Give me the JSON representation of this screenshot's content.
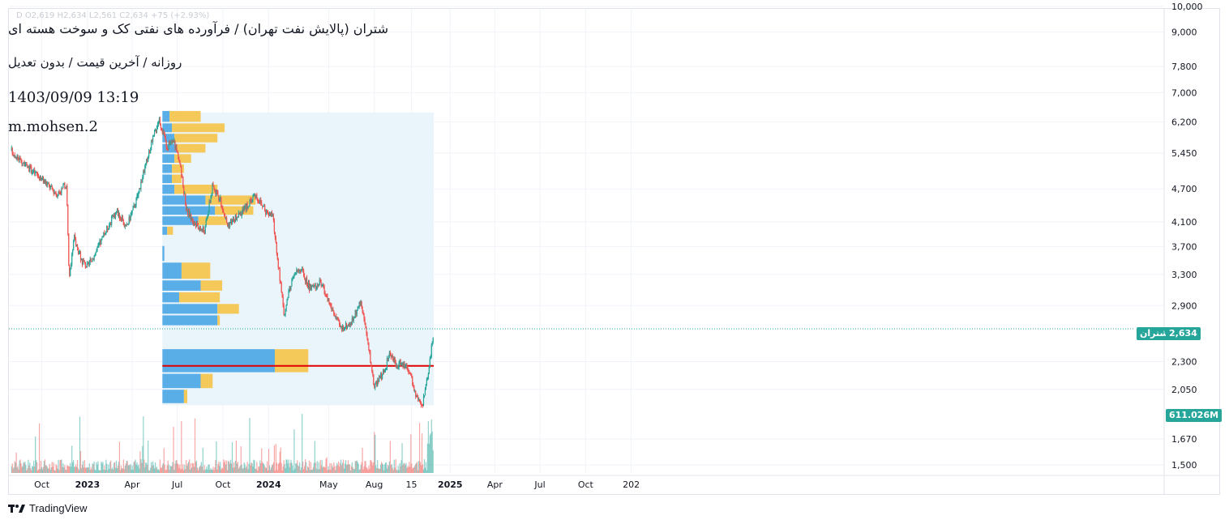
{
  "header": {
    "title": "شتران (پالایش نفت تهران) / فرآورده های نفتی کک و سوخت هسته ای",
    "subtitle": "روزانه / آخرین قیمت / بدون تعدیل",
    "datetime": "1403/09/09 13:19",
    "author": "m.mohsen.2",
    "ohlc_line": "D  O2,619  H2,634  L2,561  C2,634  +75 (+2.93%)"
  },
  "brand": {
    "name": "TradingView",
    "icon": "tradingview-logo-icon"
  },
  "colors": {
    "up": "#26a69a",
    "down": "#ef5350",
    "poc_line": "#e00000",
    "vp_up": "#5aaee8",
    "vp_down": "#f5c85a",
    "vp_zone": "#eaf4fb",
    "last_price": "#26a69a"
  },
  "last_price": {
    "symbol": "شتران",
    "value": "2,634",
    "value_num": 2634
  },
  "volume_tag": {
    "value": "611.026M"
  },
  "chart_data": {
    "type": "candlestick",
    "scale": "log",
    "ylim": [
      1480,
      10100
    ],
    "y_ticks": [
      10000,
      9000,
      7800,
      7000,
      6200,
      5450,
      4700,
      4100,
      3700,
      3300,
      2900,
      2300,
      2050,
      1670,
      1500
    ],
    "y_tick_labels": [
      "10,000",
      "9,000",
      "7,800",
      "7,000",
      "6,200",
      "5,450",
      "4,700",
      "4,100",
      "3,700",
      "3,300",
      "2,900",
      "2,300",
      "2,050",
      "1,670",
      "1,500"
    ],
    "x_labels": [
      "Oct",
      "2023",
      "Apr",
      "Jul",
      "Oct",
      "2024",
      "May",
      "Aug",
      "15",
      "2025",
      "Apr",
      "Jul",
      "Oct",
      "202"
    ],
    "price_path": [
      [
        "2022-08-01",
        5500
      ],
      [
        "2022-09-01",
        5150
      ],
      [
        "2022-10-01",
        4900
      ],
      [
        "2022-11-01",
        4600
      ],
      [
        "2022-11-20",
        4800
      ],
      [
        "2022-11-25",
        3200
      ],
      [
        "2022-12-05",
        3850
      ],
      [
        "2022-12-20",
        3500
      ],
      [
        "2023-01-01",
        3400
      ],
      [
        "2023-01-20",
        3650
      ],
      [
        "2023-02-10",
        4000
      ],
      [
        "2023-03-01",
        4300
      ],
      [
        "2023-03-20",
        4000
      ],
      [
        "2023-04-10",
        4500
      ],
      [
        "2023-05-01",
        5300
      ],
      [
        "2023-05-25",
        6300
      ],
      [
        "2023-06-10",
        5600
      ],
      [
        "2023-06-25",
        5700
      ],
      [
        "2023-07-05",
        5300
      ],
      [
        "2023-07-20",
        4300
      ],
      [
        "2023-08-10",
        4000
      ],
      [
        "2023-08-25",
        3950
      ],
      [
        "2023-09-10",
        4750
      ],
      [
        "2023-09-25",
        4500
      ],
      [
        "2023-10-10",
        4050
      ],
      [
        "2023-11-01",
        4200
      ],
      [
        "2023-11-20",
        4400
      ],
      [
        "2023-12-05",
        4600
      ],
      [
        "2023-12-25",
        4300
      ],
      [
        "2024-01-10",
        4200
      ],
      [
        "2024-01-12",
        4000
      ],
      [
        "2024-02-01",
        2800
      ],
      [
        "2024-02-20",
        3300
      ],
      [
        "2024-03-05",
        3380
      ],
      [
        "2024-03-25",
        3100
      ],
      [
        "2024-04-15",
        3200
      ],
      [
        "2024-05-05",
        2900
      ],
      [
        "2024-05-25",
        2640
      ],
      [
        "2024-06-15",
        2700
      ],
      [
        "2024-07-05",
        2950
      ],
      [
        "2024-07-10",
        2800
      ],
      [
        "2024-07-20",
        2450
      ],
      [
        "2024-08-01",
        2080
      ],
      [
        "2024-08-20",
        2200
      ],
      [
        "2024-09-01",
        2380
      ],
      [
        "2024-09-15",
        2260
      ],
      [
        "2024-09-25",
        2300
      ],
      [
        "2024-10-10",
        2230
      ],
      [
        "2024-10-25",
        1980
      ],
      [
        "2024-11-05",
        1900
      ],
      [
        "2024-11-20",
        2250
      ],
      [
        "2024-11-29",
        2634
      ]
    ],
    "volume_profile": {
      "range": [
        "2023-06-01",
        "2024-11-29"
      ],
      "poc_price": 2260,
      "rows": [
        {
          "price": 6320,
          "up": 0.15,
          "down": 0.65
        },
        {
          "price": 6050,
          "up": 0.2,
          "down": 1.1
        },
        {
          "price": 5800,
          "up": 0.25,
          "down": 0.9
        },
        {
          "price": 5560,
          "up": 0.3,
          "down": 0.6
        },
        {
          "price": 5330,
          "up": 0.25,
          "down": 0.35
        },
        {
          "price": 5110,
          "up": 0.2,
          "down": 0.25
        },
        {
          "price": 4900,
          "up": 0.2,
          "down": 0.2
        },
        {
          "price": 4700,
          "up": 0.25,
          "down": 0.9
        },
        {
          "price": 4480,
          "up": 0.9,
          "down": 1.05
        },
        {
          "price": 4300,
          "up": 1.1,
          "down": 0.8
        },
        {
          "price": 4120,
          "up": 0.75,
          "down": 0.6
        },
        {
          "price": 3950,
          "up": 0.1,
          "down": 0.12
        },
        {
          "price": 3800,
          "up": 0.0,
          "down": 0.0
        },
        {
          "price": 3650,
          "up": 0.04,
          "down": 0.0
        },
        {
          "price": 3310,
          "up": 0.4,
          "down": 0.6
        },
        {
          "price": 3150,
          "up": 0.8,
          "down": 0.45
        },
        {
          "price": 3000,
          "up": 0.35,
          "down": 0.85
        },
        {
          "price": 2860,
          "up": 1.15,
          "down": 0.45
        },
        {
          "price": 2730,
          "up": 1.15,
          "down": 0.05
        },
        {
          "price": 2600,
          "up": 0.0,
          "down": 0.0
        },
        {
          "price": 2270,
          "up": 2.35,
          "down": 0.7
        },
        {
          "price": 2120,
          "up": 0.8,
          "down": 0.25
        },
        {
          "price": 1990,
          "up": 0.45,
          "down": 0.07
        }
      ]
    }
  }
}
